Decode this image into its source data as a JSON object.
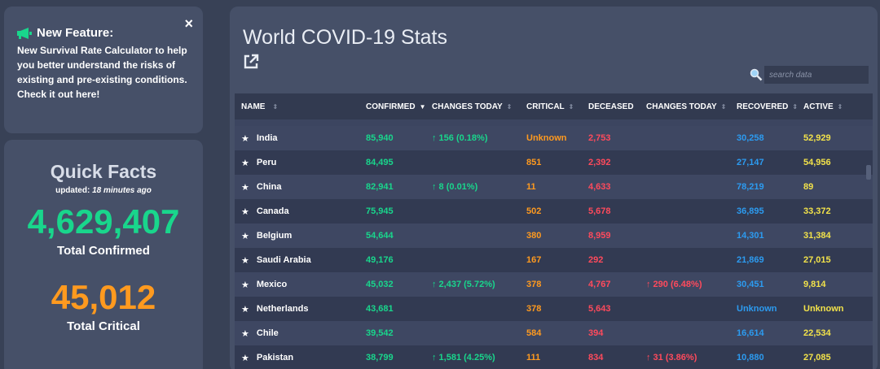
{
  "feature": {
    "title": "New Feature:",
    "body": "New Survival Rate Calculator to help you better understand the risks of existing and pre-existing conditions.",
    "link": "Check it out here!",
    "close": "×"
  },
  "facts": {
    "title": "Quick Facts",
    "updated_prefix": "updated:",
    "updated_value": "18 minutes ago",
    "confirmed_value": "4,629,407",
    "confirmed_label": "Total Confirmed",
    "critical_value": "45,012",
    "critical_label": "Total Critical"
  },
  "main": {
    "title": "World COVID-19 Stats",
    "search_placeholder": "search data"
  },
  "columns": [
    "NAME",
    "CONFIRMED",
    "CHANGES TODAY",
    "CRITICAL",
    "DECEASED",
    "CHANGES TODAY",
    "RECOVERED",
    "ACTIVE"
  ],
  "rows": [
    {
      "name": "India",
      "confirmed": "85,940",
      "chg_conf": "↑ 156 (0.18%)",
      "critical": "Unknown",
      "deceased": "2,753",
      "chg_dec": "",
      "recovered": "30,258",
      "active": "52,929"
    },
    {
      "name": "Peru",
      "confirmed": "84,495",
      "chg_conf": "",
      "critical": "851",
      "deceased": "2,392",
      "chg_dec": "",
      "recovered": "27,147",
      "active": "54,956"
    },
    {
      "name": "China",
      "confirmed": "82,941",
      "chg_conf": "↑ 8 (0.01%)",
      "critical": "11",
      "deceased": "4,633",
      "chg_dec": "",
      "recovered": "78,219",
      "active": "89"
    },
    {
      "name": "Canada",
      "confirmed": "75,945",
      "chg_conf": "",
      "critical": "502",
      "deceased": "5,678",
      "chg_dec": "",
      "recovered": "36,895",
      "active": "33,372"
    },
    {
      "name": "Belgium",
      "confirmed": "54,644",
      "chg_conf": "",
      "critical": "380",
      "deceased": "8,959",
      "chg_dec": "",
      "recovered": "14,301",
      "active": "31,384"
    },
    {
      "name": "Saudi Arabia",
      "confirmed": "49,176",
      "chg_conf": "",
      "critical": "167",
      "deceased": "292",
      "chg_dec": "",
      "recovered": "21,869",
      "active": "27,015"
    },
    {
      "name": "Mexico",
      "confirmed": "45,032",
      "chg_conf": "↑ 2,437 (5.72%)",
      "critical": "378",
      "deceased": "4,767",
      "chg_dec": "↑ 290 (6.48%)",
      "recovered": "30,451",
      "active": "9,814"
    },
    {
      "name": "Netherlands",
      "confirmed": "43,681",
      "chg_conf": "",
      "critical": "378",
      "deceased": "5,643",
      "chg_dec": "",
      "recovered": "Unknown",
      "active": "Unknown"
    },
    {
      "name": "Chile",
      "confirmed": "39,542",
      "chg_conf": "",
      "critical": "584",
      "deceased": "394",
      "chg_dec": "",
      "recovered": "16,614",
      "active": "22,534"
    },
    {
      "name": "Pakistan",
      "confirmed": "38,799",
      "chg_conf": "↑ 1,581 (4.25%)",
      "critical": "111",
      "deceased": "834",
      "chg_dec": "↑ 31 (3.86%)",
      "recovered": "10,880",
      "active": "27,085"
    }
  ],
  "colors": {
    "confirmed": "#19d68c",
    "critical": "#ff9a1f",
    "deceased": "#ff4a5c",
    "recovered": "#2c9bf0",
    "active": "#f2e24a"
  }
}
